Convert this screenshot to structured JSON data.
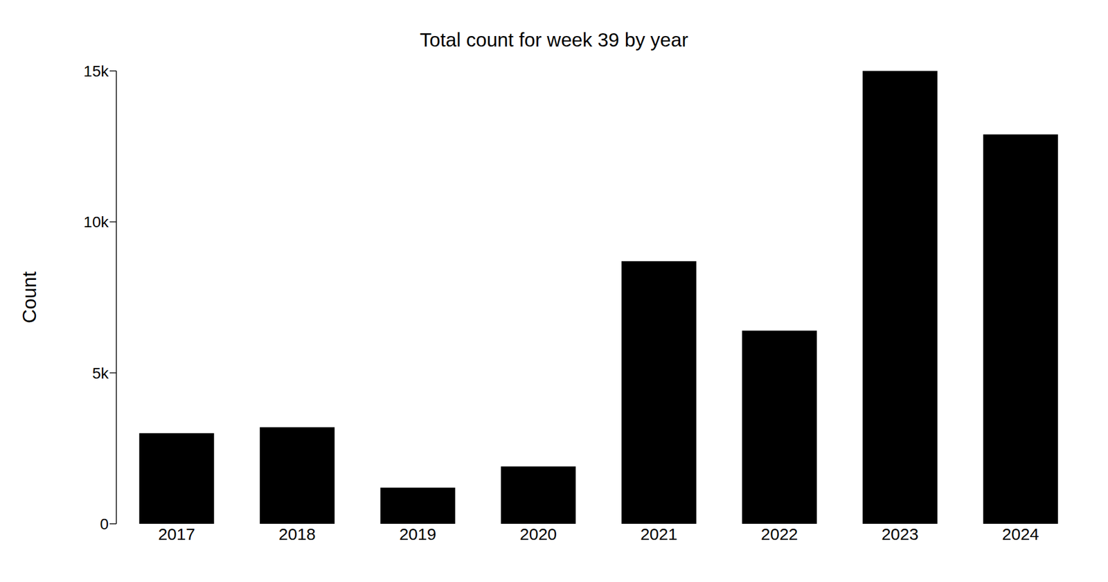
{
  "chart_data": {
    "type": "bar",
    "title": "Total count for week 39 by year",
    "y_label": "Count",
    "categories": [
      "2017",
      "2018",
      "2019",
      "2020",
      "2021",
      "2022",
      "2023",
      "2024"
    ],
    "values": [
      3000,
      3200,
      1200,
      1900,
      8700,
      6400,
      15000,
      12900
    ],
    "color": "#000000",
    "ylim": [
      0,
      15000
    ],
    "yticks": [
      0,
      {
        "value": 5000,
        "label": "5k"
      },
      {
        "value": 10000,
        "label": "10k"
      },
      {
        "value": 15000,
        "label": "15k"
      }
    ],
    "grid": false
  }
}
